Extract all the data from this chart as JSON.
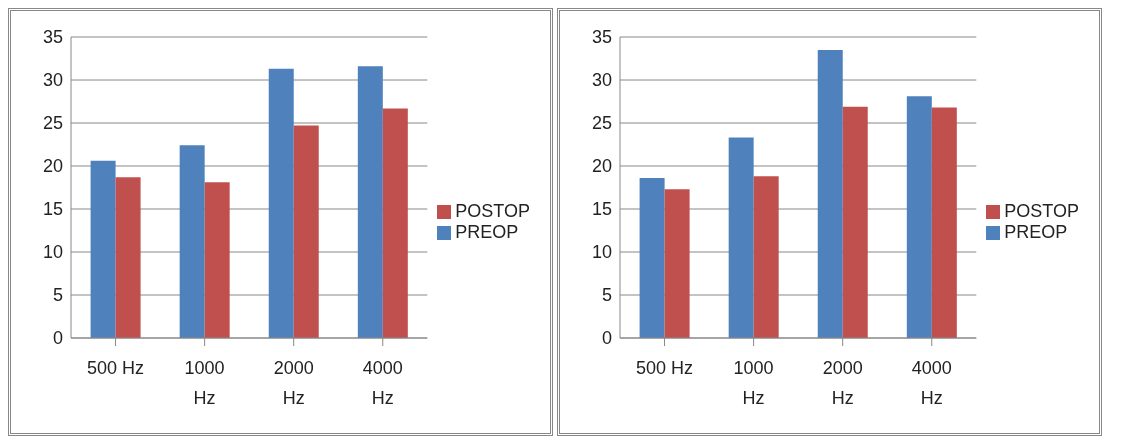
{
  "chart_data": [
    {
      "type": "bar",
      "categories": [
        "500 Hz",
        "1000 Hz",
        "2000 Hz",
        "4000 Hz"
      ],
      "series": [
        {
          "name": "PREOP",
          "color": "#4f81bd",
          "values": [
            20.6,
            22.4,
            31.3,
            31.6
          ]
        },
        {
          "name": "POSTOP",
          "color": "#c0504d",
          "values": [
            18.7,
            18.1,
            24.7,
            26.7
          ]
        }
      ],
      "ylim": [
        0,
        35
      ],
      "yticks": [
        0,
        5,
        10,
        15,
        20,
        25,
        30,
        35
      ],
      "grid": "y",
      "legend": "right"
    },
    {
      "type": "bar",
      "categories": [
        "500 Hz",
        "1000 Hz",
        "2000 Hz",
        "4000 Hz"
      ],
      "series": [
        {
          "name": "PREOP",
          "color": "#4f81bd",
          "values": [
            18.6,
            23.3,
            33.5,
            28.1
          ]
        },
        {
          "name": "POSTOP",
          "color": "#c0504d",
          "values": [
            17.3,
            18.8,
            26.9,
            26.8
          ]
        }
      ],
      "ylim": [
        0,
        35
      ],
      "yticks": [
        0,
        5,
        10,
        15,
        20,
        25,
        30,
        35
      ],
      "grid": "y",
      "legend": "right"
    }
  ]
}
